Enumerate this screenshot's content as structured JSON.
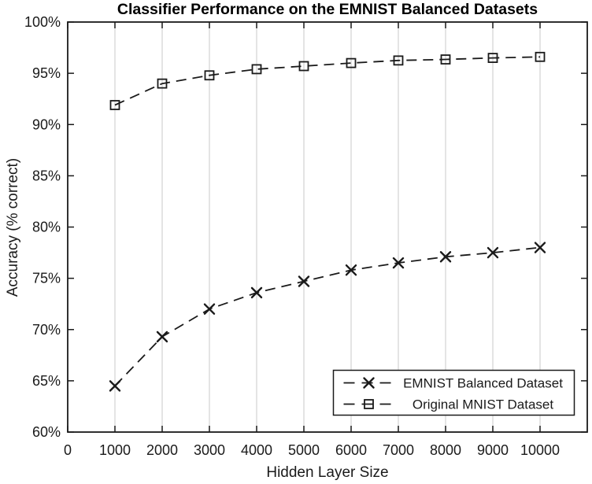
{
  "chart_data": {
    "type": "line",
    "title": "Classifier Performance on the EMNIST Balanced Datasets",
    "xlabel": "Hidden Layer Size",
    "ylabel": "Accuracy (% correct)",
    "xlim": [
      0,
      11000
    ],
    "ylim": [
      60,
      100
    ],
    "x_ticks": [
      0,
      1000,
      2000,
      3000,
      4000,
      5000,
      6000,
      7000,
      8000,
      9000,
      10000
    ],
    "x_tick_labels": [
      "0",
      "1000",
      "2000",
      "3000",
      "4000",
      "5000",
      "6000",
      "7000",
      "8000",
      "9000",
      "10000"
    ],
    "y_ticks": [
      60,
      65,
      70,
      75,
      80,
      85,
      90,
      95,
      100
    ],
    "y_tick_labels": [
      "60%",
      "65%",
      "70%",
      "75%",
      "80%",
      "85%",
      "90%",
      "95%",
      "100%"
    ],
    "grid": "vertical-only",
    "x": [
      1000,
      2000,
      3000,
      4000,
      5000,
      6000,
      7000,
      8000,
      9000,
      10000
    ],
    "series": [
      {
        "name": "EMNIST Balanced Dataset",
        "marker": "x",
        "line_style": "dashed",
        "values": [
          64.5,
          69.3,
          72.0,
          73.6,
          74.7,
          75.8,
          76.5,
          77.1,
          77.5,
          78.0
        ]
      },
      {
        "name": "Original MNIST Dataset",
        "marker": "square",
        "line_style": "dashed",
        "values": [
          91.9,
          94.0,
          94.8,
          95.4,
          95.7,
          96.0,
          96.25,
          96.35,
          96.5,
          96.6
        ]
      }
    ],
    "legend": {
      "position": "bottom-right",
      "entries": [
        "EMNIST Balanced Dataset",
        "Original MNIST Dataset"
      ]
    },
    "colors": {
      "line": "#1a1a1a",
      "grid": "#d3d3d3",
      "text": "#1a1a1a",
      "background": "#ffffff",
      "legend_border": "#1a1a1a"
    }
  }
}
